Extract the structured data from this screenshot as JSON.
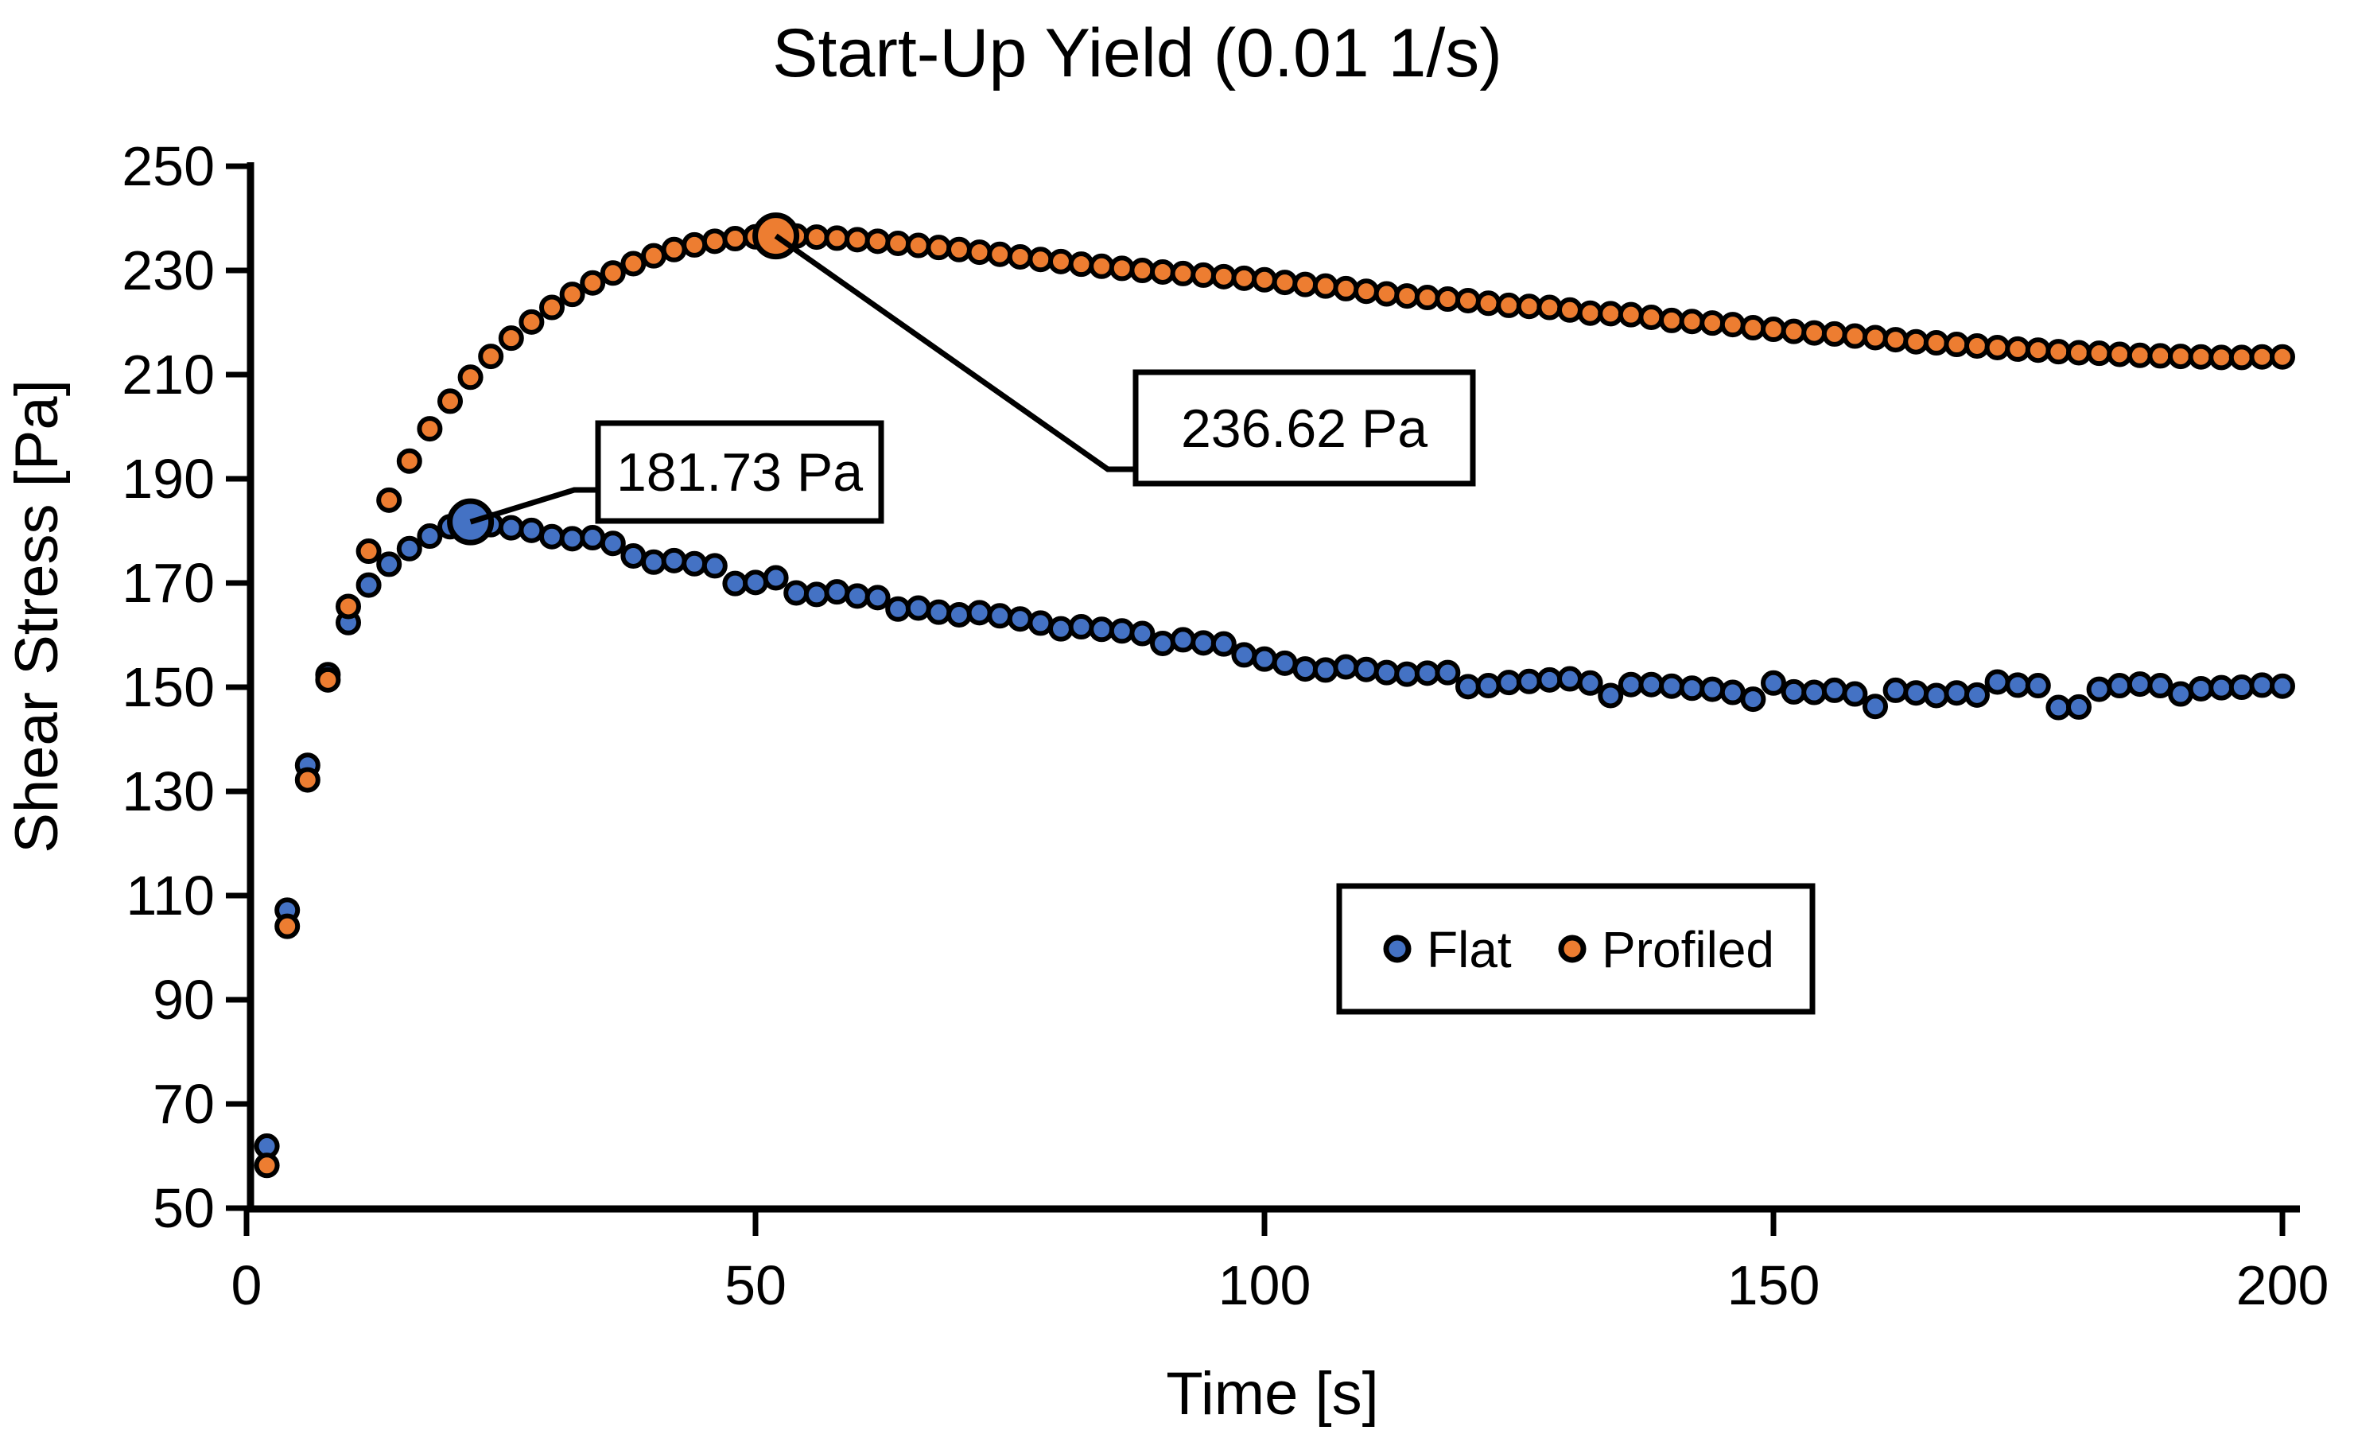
{
  "title": "Start-Up Yield (0.01 1/s)",
  "axes": {
    "x": {
      "label": "Time [s]",
      "ticks": [
        0,
        50,
        100,
        150,
        200
      ],
      "min": 0,
      "max": 200
    },
    "y": {
      "label": "Shear Stress [Pa]",
      "ticks": [
        50,
        70,
        90,
        110,
        130,
        150,
        170,
        190,
        210,
        230,
        250
      ],
      "min": 50,
      "max": 250
    }
  },
  "legend": {
    "items": [
      {
        "label": "Flat",
        "color": "#4472C4"
      },
      {
        "label": "Profiled",
        "color": "#ED7D31"
      }
    ]
  },
  "annotations": [
    {
      "label": "181.73 Pa",
      "series": "Flat",
      "t": 22,
      "value": 181.73
    },
    {
      "label": "236.62 Pa",
      "series": "Profiled",
      "t": 52,
      "value": 236.62
    }
  ],
  "chart_data": {
    "type": "scatter",
    "title": "Start-Up Yield (0.01 1/s)",
    "xlabel": "Time [s]",
    "ylabel": "Shear Stress [Pa]",
    "xlim": [
      0,
      200
    ],
    "ylim": [
      50,
      250
    ],
    "grid": false,
    "legend_position": "inside lower right",
    "marker_outline": "#000000",
    "x": [
      2,
      4,
      6,
      8,
      10,
      12,
      14,
      16,
      18,
      20,
      22,
      24,
      26,
      28,
      30,
      32,
      34,
      36,
      38,
      40,
      42,
      44,
      46,
      48,
      50,
      52,
      54,
      56,
      58,
      60,
      62,
      64,
      66,
      68,
      70,
      72,
      74,
      76,
      78,
      80,
      82,
      84,
      86,
      88,
      90,
      92,
      94,
      96,
      98,
      100,
      102,
      104,
      106,
      108,
      110,
      112,
      114,
      116,
      118,
      120,
      122,
      124,
      126,
      128,
      130,
      132,
      134,
      136,
      138,
      140,
      142,
      144,
      146,
      148,
      150,
      152,
      154,
      156,
      158,
      160,
      162,
      164,
      166,
      168,
      170,
      172,
      174,
      176,
      178,
      180,
      182,
      184,
      186,
      188,
      190,
      192,
      194,
      196,
      198,
      200
    ],
    "series": [
      {
        "name": "Flat",
        "color": "#4472C4",
        "peak": {
          "t": 22,
          "value": 181.73
        },
        "values": [
          61.9,
          107.2,
          135,
          152.4,
          162.4,
          169.6,
          173.6,
          176.6,
          179,
          180.8,
          181.73,
          181.2,
          180.6,
          180.1,
          178.9,
          178.5,
          178.7,
          177.6,
          175.2,
          174,
          174.3,
          173.7,
          173.3,
          169.9,
          170.1,
          171,
          168.1,
          167.8,
          168.3,
          167.5,
          167.2,
          165,
          165.2,
          164.4,
          163.9,
          164.3,
          163.7,
          163.1,
          162.3,
          161.2,
          161.6,
          161.1,
          160.8,
          160.3,
          158.4,
          159.1,
          158.5,
          158.3,
          156.2,
          155.4,
          154.6,
          153.5,
          153.3,
          153.9,
          153.4,
          152.8,
          152.5,
          152.7,
          152.8,
          150.1,
          150.3,
          150.9,
          151.1,
          151.4,
          151.6,
          150.8,
          148.4,
          150.5,
          150.5,
          150.2,
          149.8,
          149.6,
          149,
          147.7,
          150.8,
          149.1,
          149,
          149.4,
          148.7,
          146.3,
          149.4,
          148.9,
          148.4,
          148.9,
          148.5,
          151,
          150.4,
          150.3,
          146.1,
          146.2,
          149.6,
          150.3,
          150.6,
          150.3,
          148.7,
          149.7,
          149.9,
          150,
          150.4,
          150.2
        ]
      },
      {
        "name": "Profiled",
        "color": "#ED7D31",
        "peak": {
          "t": 52,
          "value": 236.62
        },
        "values": [
          58.2,
          104.1,
          132.2,
          151.4,
          165.5,
          176.1,
          185.9,
          193.4,
          199.6,
          204.9,
          209.5,
          213.5,
          217,
          220.1,
          222.9,
          225.4,
          227.6,
          229.5,
          231.3,
          232.8,
          234,
          234.9,
          235.6,
          236.1,
          236.45,
          236.62,
          236.6,
          236.4,
          236.2,
          235.9,
          235.6,
          235.2,
          234.8,
          234.4,
          234,
          233.5,
          233.1,
          232.6,
          232.1,
          231.7,
          231.2,
          230.8,
          230.4,
          230,
          229.7,
          229.4,
          229.1,
          228.8,
          228.5,
          228.2,
          227.7,
          227.3,
          227,
          226.5,
          226,
          225.5,
          225.1,
          224.8,
          224.5,
          224.2,
          223.7,
          223.3,
          223.1,
          222.9,
          222.4,
          221.8,
          221.7,
          221.5,
          221,
          220.4,
          220.2,
          219.9,
          219.6,
          219,
          218.7,
          218.3,
          218,
          217.8,
          217.4,
          217.1,
          216.7,
          216.3,
          216.1,
          215.8,
          215.5,
          215.2,
          214.9,
          214.7,
          214.4,
          214.2,
          214.1,
          213.9,
          213.7,
          213.6,
          213.5,
          213.4,
          213.3,
          213.3,
          213.4,
          213.4
        ]
      }
    ]
  }
}
